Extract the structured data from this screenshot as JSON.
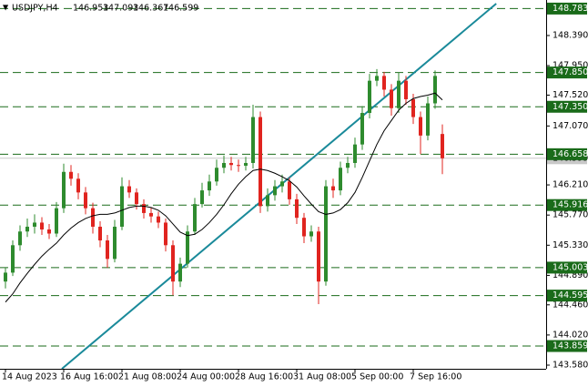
{
  "chart_data": {
    "type": "candlestick",
    "title": "USDJPY,H4",
    "up_color": "#2e8b2e",
    "down_color": "#e0241f",
    "ma_color": "#000000",
    "level_color": "#1a6b1a",
    "trend_color": "#1a8a9a",
    "price_color": "#c8c8c8",
    "ylim": [
      143.527,
      148.908
    ],
    "yticks": [
      {
        "value": 148.39,
        "label": "148.390"
      },
      {
        "value": 147.95,
        "label": "147.950"
      },
      {
        "value": 147.52,
        "label": "147.520"
      },
      {
        "value": 147.07,
        "label": "147.070"
      },
      {
        "value": 146.21,
        "label": "146.210"
      },
      {
        "value": 145.77,
        "label": "145.770"
      },
      {
        "value": 145.33,
        "label": "145.330"
      },
      {
        "value": 144.89,
        "label": "144.890"
      },
      {
        "value": 144.46,
        "label": "144.460"
      },
      {
        "value": 144.02,
        "label": "144.020"
      },
      {
        "value": 143.58,
        "label": "143.580"
      }
    ],
    "levels": [
      148.783,
      {
        "value": 147.85,
        "label": "147.850"
      },
      {
        "value": 147.35,
        "label": "147.350"
      },
      146.658,
      145.916,
      145.003,
      144.595,
      143.859
    ],
    "current_price": 146.599,
    "categories": [
      "14 Aug 2023",
      null,
      null,
      null,
      null,
      null,
      null,
      null,
      "16 Aug 16:00",
      null,
      null,
      null,
      null,
      null,
      null,
      null,
      "21 Aug 08:00",
      null,
      null,
      null,
      null,
      null,
      null,
      null,
      "24 Aug 00:00",
      null,
      null,
      null,
      null,
      null,
      null,
      null,
      "28 Aug 16:00",
      null,
      null,
      null,
      null,
      null,
      null,
      null,
      "31 Aug 08:00",
      null,
      null,
      null,
      null,
      null,
      null,
      null,
      "5 Sep 00:00",
      null,
      null,
      null,
      null,
      null,
      null,
      null,
      "7 Sep 16:00",
      null,
      null,
      null,
      null
    ],
    "candles": [
      [
        144.8,
        145.0,
        144.7,
        144.93
      ],
      [
        144.93,
        145.4,
        144.88,
        145.33
      ],
      [
        145.33,
        145.62,
        145.25,
        145.53
      ],
      [
        145.53,
        145.72,
        145.45,
        145.6
      ],
      [
        145.6,
        145.78,
        145.5,
        145.66
      ],
      [
        145.66,
        145.74,
        145.48,
        145.56
      ],
      [
        145.56,
        145.64,
        145.42,
        145.5
      ],
      [
        145.5,
        145.96,
        145.45,
        145.87
      ],
      [
        145.87,
        146.52,
        145.8,
        146.4
      ],
      [
        146.4,
        146.5,
        146.2,
        146.3
      ],
      [
        146.3,
        146.38,
        146.0,
        146.1
      ],
      [
        146.1,
        146.18,
        145.78,
        145.87
      ],
      [
        145.87,
        145.95,
        145.5,
        145.6
      ],
      [
        145.6,
        145.68,
        145.3,
        145.4
      ],
      [
        145.4,
        145.48,
        145.0,
        145.13
      ],
      [
        145.13,
        145.7,
        145.08,
        145.6
      ],
      [
        145.6,
        146.32,
        145.55,
        146.19
      ],
      [
        146.19,
        146.28,
        146.02,
        146.1
      ],
      [
        146.1,
        146.16,
        145.85,
        145.93
      ],
      [
        145.93,
        146.0,
        145.72,
        145.8
      ],
      [
        145.8,
        145.88,
        145.66,
        145.75
      ],
      [
        145.75,
        145.82,
        145.58,
        145.66
      ],
      [
        145.66,
        145.72,
        145.24,
        145.33
      ],
      [
        145.33,
        145.4,
        144.6,
        144.8
      ],
      [
        144.8,
        145.15,
        144.72,
        145.06
      ],
      [
        145.06,
        145.62,
        145.0,
        145.53
      ],
      [
        145.53,
        146.02,
        145.48,
        145.93
      ],
      [
        145.93,
        146.24,
        145.88,
        146.13
      ],
      [
        146.13,
        146.36,
        146.05,
        146.26
      ],
      [
        146.26,
        146.58,
        146.2,
        146.46
      ],
      [
        146.46,
        146.64,
        146.38,
        146.53
      ],
      [
        146.53,
        146.62,
        146.42,
        146.5
      ],
      [
        146.5,
        146.58,
        146.4,
        146.49
      ],
      [
        146.49,
        146.62,
        146.42,
        146.53
      ],
      [
        146.53,
        147.38,
        146.45,
        147.2
      ],
      [
        147.2,
        147.28,
        145.8,
        145.9
      ],
      [
        145.9,
        146.16,
        145.82,
        146.06
      ],
      [
        146.06,
        146.28,
        145.98,
        146.19
      ],
      [
        146.19,
        146.36,
        146.1,
        146.26
      ],
      [
        146.26,
        146.32,
        145.92,
        146.0
      ],
      [
        146.0,
        146.08,
        145.64,
        145.73
      ],
      [
        145.73,
        145.8,
        145.36,
        145.46
      ],
      [
        145.46,
        145.62,
        145.38,
        145.53
      ],
      [
        145.53,
        145.6,
        144.47,
        144.8
      ],
      [
        144.8,
        146.28,
        144.74,
        146.19
      ],
      [
        146.19,
        146.3,
        146.02,
        146.13
      ],
      [
        146.13,
        146.55,
        146.06,
        146.46
      ],
      [
        146.46,
        146.62,
        146.38,
        146.53
      ],
      [
        146.53,
        146.9,
        146.46,
        146.8
      ],
      [
        146.8,
        147.36,
        146.72,
        147.26
      ],
      [
        147.26,
        147.83,
        147.18,
        147.73
      ],
      [
        147.73,
        147.9,
        147.65,
        147.8
      ],
      [
        147.8,
        147.86,
        147.5,
        147.6
      ],
      [
        147.6,
        147.68,
        147.22,
        147.33
      ],
      [
        147.33,
        147.85,
        147.26,
        147.73
      ],
      [
        147.73,
        147.8,
        147.38,
        147.46
      ],
      [
        147.46,
        147.54,
        147.1,
        147.2
      ],
      [
        147.2,
        147.28,
        146.66,
        146.93
      ],
      [
        146.93,
        147.5,
        146.86,
        147.4
      ],
      [
        147.4,
        147.88,
        147.32,
        147.8
      ],
      [
        146.953,
        147.093,
        146.367,
        146.599
      ]
    ],
    "ma": [
      144.5,
      144.62,
      144.78,
      144.92,
      145.05,
      145.17,
      145.27,
      145.36,
      145.48,
      145.58,
      145.66,
      145.72,
      145.76,
      145.78,
      145.78,
      145.8,
      145.84,
      145.88,
      145.9,
      145.9,
      145.88,
      145.84,
      145.76,
      145.64,
      145.52,
      145.47,
      145.49,
      145.56,
      145.66,
      145.78,
      145.92,
      146.08,
      146.22,
      146.33,
      146.42,
      146.44,
      146.42,
      146.38,
      146.33,
      146.27,
      146.18,
      146.05,
      145.93,
      145.82,
      145.78,
      145.8,
      145.85,
      145.95,
      146.1,
      146.32,
      146.56,
      146.8,
      147.0,
      147.15,
      147.3,
      147.4,
      147.47,
      147.5,
      147.52,
      147.55,
      147.45
    ],
    "trendline": {
      "from": {
        "index": 7.75,
        "price": 143.527
      },
      "to": {
        "index": 67.4,
        "price": 148.855
      }
    }
  }
}
